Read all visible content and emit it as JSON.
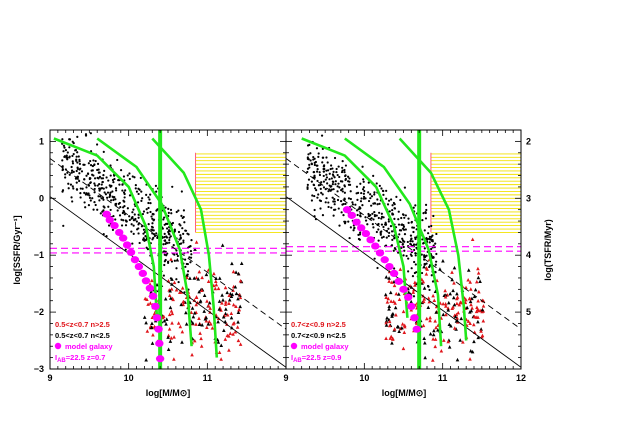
{
  "chart_data": [
    {
      "type": "scatter",
      "panel": "left",
      "xlabel": "log[M/M⊙]",
      "ylabel": "log[SSFR/Gyr⁻¹]",
      "xlim": [
        9,
        12
      ],
      "ylim": [
        -3,
        1.2
      ],
      "x_ticks": [
        "9",
        "10",
        "11"
      ],
      "y_ticks": [
        "−3",
        "−2",
        "−1",
        "0",
        "1"
      ],
      "legend": {
        "position": "bottom-left",
        "entries": [
          {
            "label": "0.5<z<0.7  n>2.5",
            "color": "#e0151b",
            "marker": "triangle"
          },
          {
            "label": "0.5<z<0.7  n<2.5",
            "color": "#000000",
            "marker": "dot"
          },
          {
            "label": "model galaxy",
            "color": "#ff00ff",
            "marker": "circle"
          },
          {
            "label": "I",
            "sub": "AB",
            "rest": "=22.5   z=0.7",
            "color": "#ff00ff",
            "marker": "none"
          }
        ]
      },
      "vertical_line_x": 10.4,
      "model_galaxy_track": [
        [
          9.72,
          -0.28
        ],
        [
          9.76,
          -0.38
        ],
        [
          9.82,
          -0.48
        ],
        [
          9.88,
          -0.6
        ],
        [
          9.93,
          -0.7
        ],
        [
          9.98,
          -0.82
        ],
        [
          10.03,
          -0.95
        ],
        [
          10.08,
          -1.08
        ],
        [
          10.13,
          -1.2
        ],
        [
          10.18,
          -1.32
        ],
        [
          10.22,
          -1.45
        ],
        [
          10.27,
          -1.58
        ],
        [
          10.31,
          -1.72
        ],
        [
          10.34,
          -1.9
        ],
        [
          10.36,
          -2.1
        ],
        [
          10.38,
          -2.3
        ],
        [
          10.39,
          -2.55
        ],
        [
          10.4,
          -2.82
        ]
      ],
      "hatched_box": {
        "x": [
          10.85,
          12
        ],
        "y": [
          -0.6,
          0.8
        ],
        "color": "#f2e200"
      },
      "magenta_dashed_y": [
        -0.88,
        -0.96
      ],
      "diagonal_lines": [
        {
          "style": "solid",
          "from": [
            9,
            0.03
          ],
          "to": [
            12,
            -2.97
          ]
        },
        {
          "style": "dashed",
          "from": [
            9,
            0.7
          ],
          "to": [
            12,
            -2.3
          ]
        }
      ],
      "green_curves": [
        [
          [
            9.05,
            1.05
          ],
          [
            9.6,
            0.75
          ],
          [
            10.0,
            0.2
          ],
          [
            10.22,
            -0.5
          ],
          [
            10.32,
            -1.2
          ],
          [
            10.36,
            -2.1
          ]
        ],
        [
          [
            9.6,
            1.05
          ],
          [
            10.1,
            0.55
          ],
          [
            10.42,
            -0.1
          ],
          [
            10.65,
            -0.9
          ],
          [
            10.75,
            -1.7
          ],
          [
            10.8,
            -2.6
          ]
        ],
        [
          [
            10.3,
            1.05
          ],
          [
            10.7,
            0.45
          ],
          [
            10.92,
            -0.2
          ],
          [
            11.02,
            -1.0
          ],
          [
            11.08,
            -1.9
          ],
          [
            11.12,
            -2.8
          ]
        ]
      ]
    },
    {
      "type": "scatter",
      "panel": "right",
      "xlabel": "log[M/M⊙]",
      "ylabel": "log(TSFR/Myr)",
      "xlim": [
        9,
        12
      ],
      "ylim": [
        -3,
        1.2
      ],
      "x_ticks": [
        "9",
        "10",
        "11",
        "12"
      ],
      "right_axis_ticks": [
        "2",
        "3",
        "4",
        "5"
      ],
      "legend": {
        "position": "bottom-left",
        "entries": [
          {
            "label": "0.7<z<0.9  n>2.5",
            "color": "#e0151b",
            "marker": "triangle"
          },
          {
            "label": "0.7<z<0.9  n<2.5",
            "color": "#000000",
            "marker": "dot"
          },
          {
            "label": "model galaxy",
            "color": "#ff00ff",
            "marker": "circle"
          },
          {
            "label": "I",
            "sub": "AB",
            "rest": "=22.5   z=0.9",
            "color": "#ff00ff",
            "marker": "none"
          }
        ]
      },
      "vertical_line_x": 10.7,
      "model_galaxy_track": [
        [
          9.78,
          -0.2
        ],
        [
          9.84,
          -0.3
        ],
        [
          9.9,
          -0.42
        ],
        [
          9.96,
          -0.52
        ],
        [
          10.02,
          -0.62
        ],
        [
          10.08,
          -0.73
        ],
        [
          10.14,
          -0.84
        ],
        [
          10.2,
          -0.96
        ],
        [
          10.26,
          -1.08
        ],
        [
          10.32,
          -1.2
        ],
        [
          10.38,
          -1.32
        ],
        [
          10.44,
          -1.46
        ],
        [
          10.5,
          -1.6
        ],
        [
          10.56,
          -1.74
        ],
        [
          10.6,
          -1.9
        ],
        [
          10.64,
          -2.1
        ],
        [
          10.67,
          -2.3
        ]
      ],
      "hatched_box": {
        "x": [
          10.85,
          12
        ],
        "y": [
          -0.6,
          0.8
        ],
        "color": "#f2e200"
      },
      "magenta_dashed_y": [
        -0.85,
        -0.93
      ],
      "diagonal_lines": [
        {
          "style": "solid",
          "from": [
            9,
            0.03
          ],
          "to": [
            12,
            -2.97
          ]
        },
        {
          "style": "dashed",
          "from": [
            9,
            0.7
          ],
          "to": [
            12,
            -2.3
          ]
        }
      ],
      "green_curves": [
        [
          [
            9.2,
            1.05
          ],
          [
            9.75,
            0.75
          ],
          [
            10.15,
            0.2
          ],
          [
            10.38,
            -0.5
          ],
          [
            10.5,
            -1.2
          ],
          [
            10.55,
            -2.1
          ]
        ],
        [
          [
            9.75,
            1.05
          ],
          [
            10.25,
            0.55
          ],
          [
            10.58,
            -0.1
          ],
          [
            10.82,
            -0.9
          ],
          [
            10.94,
            -1.7
          ],
          [
            10.98,
            -2.6
          ]
        ],
        [
          [
            10.45,
            1.05
          ],
          [
            10.85,
            0.45
          ],
          [
            11.08,
            -0.2
          ],
          [
            11.2,
            -1.0
          ],
          [
            11.27,
            -1.9
          ],
          [
            11.3,
            -2.5
          ]
        ]
      ]
    }
  ]
}
